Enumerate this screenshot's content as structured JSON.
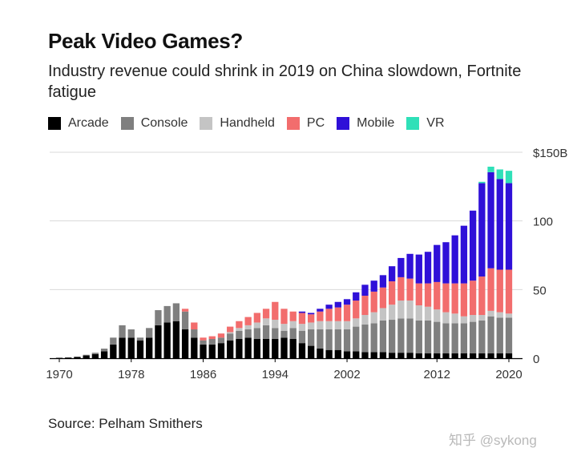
{
  "title": "Peak Video Games?",
  "subtitle": "Industry revenue could shrink in 2019 on China slowdown, Fortnite fatigue",
  "source": "Source: Pelham Smithers",
  "watermark": "知乎 @sykong",
  "legend": [
    {
      "name": "Arcade",
      "color": "#000000"
    },
    {
      "name": "Console",
      "color": "#7f7f7f"
    },
    {
      "name": "Handheld",
      "color": "#c4c4c4"
    },
    {
      "name": "PC",
      "color": "#f26d6d"
    },
    {
      "name": "Mobile",
      "color": "#2f10d8"
    },
    {
      "name": "VR",
      "color": "#2fe0b8"
    }
  ],
  "chart_data": {
    "type": "bar",
    "stacked": true,
    "x": [
      1970,
      1971,
      1972,
      1973,
      1974,
      1975,
      1976,
      1977,
      1978,
      1979,
      1980,
      1981,
      1982,
      1983,
      1984,
      1985,
      1986,
      1987,
      1988,
      1989,
      1990,
      1991,
      1992,
      1993,
      1994,
      1995,
      1996,
      1997,
      1998,
      1999,
      2000,
      2001,
      2002,
      2003,
      2004,
      2005,
      2006,
      2007,
      2008,
      2009,
      2010,
      2011,
      2012,
      2013,
      2014,
      2015,
      2016,
      2017,
      2018,
      2019,
      2020
    ],
    "x_ticks": [
      {
        "value": 1970,
        "label": "1970"
      },
      {
        "value": 1978,
        "label": "1978"
      },
      {
        "value": 1986,
        "label": "1986"
      },
      {
        "value": 1994,
        "label": "1994"
      },
      {
        "value": 2002,
        "label": "2002"
      },
      {
        "value": 2012,
        "label": "2012"
      },
      {
        "value": 2020,
        "label": "2020"
      }
    ],
    "y_ticks": [
      {
        "value": 0,
        "label": "0"
      },
      {
        "value": 50,
        "label": "50"
      },
      {
        "value": 100,
        "label": "100"
      },
      {
        "value": 150,
        "label": "$150B"
      }
    ],
    "ylim": [
      0,
      150
    ],
    "grid": true,
    "legend_position": "top",
    "series": [
      {
        "name": "Arcade",
        "color": "#000000",
        "values": [
          0.3,
          0.5,
          1,
          2,
          3,
          5,
          10,
          15,
          15,
          13,
          15,
          24,
          26,
          27,
          21,
          15,
          10,
          10,
          11,
          13,
          14,
          15,
          14,
          14,
          14,
          15,
          14,
          11,
          9,
          7,
          6,
          6,
          5,
          5,
          4.5,
          4.5,
          4.5,
          4,
          4,
          4,
          3.5,
          3.5,
          3.5,
          3.5,
          3.5,
          3.5,
          3.5,
          3.5,
          3.5,
          3.5,
          3.5
        ]
      },
      {
        "name": "Console",
        "color": "#7f7f7f",
        "values": [
          0,
          0,
          0,
          0.5,
          1,
          2,
          5,
          9,
          6,
          2,
          7,
          11,
          12,
          13,
          13,
          6,
          3,
          4,
          4,
          5,
          6,
          6,
          8,
          10,
          8,
          5,
          8,
          9,
          12,
          14,
          15,
          15,
          16,
          18,
          20,
          21,
          23,
          24,
          25,
          25,
          24,
          24,
          23,
          22,
          22,
          22,
          23,
          24,
          27,
          26,
          26
        ]
      },
      {
        "name": "Handheld",
        "color": "#c4c4c4",
        "values": [
          0,
          0,
          0,
          0,
          0,
          0,
          0,
          0,
          0,
          0,
          0,
          0,
          0,
          0,
          0,
          0,
          0,
          0,
          0,
          1,
          2,
          3,
          4,
          5,
          6,
          5,
          5,
          5,
          5,
          6,
          6,
          6,
          6,
          6,
          7,
          8,
          9,
          11,
          13,
          13,
          11,
          10,
          9,
          8,
          7,
          5,
          5,
          4,
          4,
          4,
          3
        ]
      },
      {
        "name": "PC",
        "color": "#f26d6d",
        "values": [
          0,
          0,
          0,
          0,
          0,
          0,
          0,
          0,
          0,
          0,
          0,
          0,
          0,
          0,
          2,
          5,
          2,
          2,
          3,
          4,
          5,
          6,
          7,
          7,
          13,
          11,
          7,
          8,
          6,
          7,
          9,
          10,
          12,
          13,
          14,
          15,
          15,
          17,
          17,
          16,
          16,
          17,
          20,
          21,
          22,
          24,
          25,
          28,
          31,
          31,
          32
        ]
      },
      {
        "name": "Mobile",
        "color": "#2f10d8",
        "values": [
          0,
          0,
          0,
          0,
          0,
          0,
          0,
          0,
          0,
          0,
          0,
          0,
          0,
          0,
          0,
          0,
          0,
          0,
          0,
          0,
          0,
          0,
          0,
          0,
          0,
          0,
          0,
          1,
          1,
          2,
          3,
          4,
          4,
          6,
          8,
          8,
          9,
          11,
          14,
          18,
          21,
          23,
          27,
          30,
          35,
          42,
          51,
          68,
          70,
          66,
          63
        ]
      },
      {
        "name": "VR",
        "color": "#2fe0b8",
        "values": [
          0,
          0,
          0,
          0,
          0,
          0,
          0,
          0,
          0,
          0,
          0,
          0,
          0,
          0,
          0,
          0,
          0,
          0,
          0,
          0,
          0,
          0,
          0,
          0,
          0,
          0,
          0,
          0,
          0,
          0,
          0,
          0,
          0,
          0,
          0,
          0,
          0,
          0,
          0,
          0,
          0,
          0,
          0,
          0,
          0,
          0,
          0,
          1,
          4,
          7,
          9
        ]
      }
    ]
  }
}
